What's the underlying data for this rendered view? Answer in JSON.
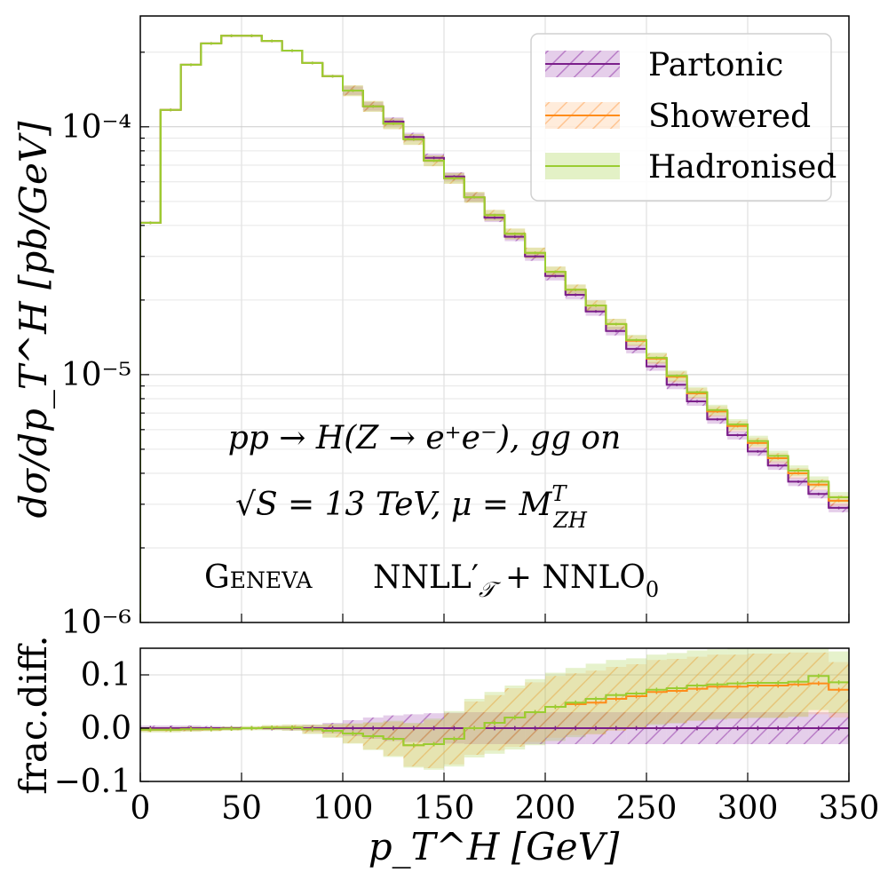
{
  "chart_data": {
    "type": "histogram-step",
    "title": "",
    "bin_edges": [
      0,
      10,
      20,
      30,
      40,
      50,
      60,
      70,
      80,
      90,
      100,
      110,
      120,
      130,
      140,
      150,
      160,
      170,
      180,
      190,
      200,
      210,
      220,
      230,
      240,
      250,
      260,
      270,
      280,
      290,
      300,
      310,
      320,
      330,
      340,
      350
    ],
    "upper_panel": {
      "ylabel": "dσ/dp_T^H   [pb/GeV]",
      "yscale": "log",
      "ylim": [
        1e-06,
        0.00028
      ],
      "yticks": [
        1e-06,
        1e-05,
        0.0001
      ],
      "ytick_labels": [
        "10⁻⁶",
        "10⁻⁵",
        "10⁻⁴"
      ],
      "series": [
        {
          "name": "Partonic",
          "color": "#7b1f8a",
          "band_opacity": 0.25,
          "hatched": true,
          "values": [
            4.1e-05,
            0.000117,
            0.000178,
            0.000217,
            0.000233,
            0.000233,
            0.000222,
            0.000203,
            0.000181,
            0.00016,
            0.00014,
            0.000121,
            0.000105,
            9.1e-05,
            7.5e-05,
            6.3e-05,
            5.2e-05,
            4.3e-05,
            3.6e-05,
            3e-05,
            2.5e-05,
            2.1e-05,
            1.8e-05,
            1.5e-05,
            1.27e-05,
            1.08e-05,
            9.1e-06,
            7.8e-06,
            6.6e-06,
            5.7e-06,
            4.9e-06,
            4.3e-06,
            3.7e-06,
            3.3e-06,
            2.9e-06
          ],
          "rel_band": 0.04
        },
        {
          "name": "Showered",
          "color": "#ff8c1a",
          "band_opacity": 0.2,
          "hatched": true,
          "values": [
            4.1e-05,
            0.000117,
            0.000178,
            0.000217,
            0.000233,
            0.000233,
            0.000222,
            0.000203,
            0.000181,
            0.00016,
            0.00014,
            0.000121,
            0.000103,
            8.9e-05,
            7.3e-05,
            6.2e-05,
            5.2e-05,
            4.4e-05,
            3.7e-05,
            3.1e-05,
            2.6e-05,
            2.2e-05,
            1.9e-05,
            1.6e-05,
            1.37e-05,
            1.16e-05,
            9.8e-06,
            8.4e-06,
            7.1e-06,
            6.2e-06,
            5.3e-06,
            4.6e-06,
            4e-06,
            3.6e-06,
            3.1e-06
          ],
          "rel_band": 0.05
        },
        {
          "name": "Hadronised",
          "color": "#9acd32",
          "band_opacity": 0.25,
          "hatched": false,
          "values": [
            4.1e-05,
            0.000117,
            0.000178,
            0.000217,
            0.000233,
            0.000233,
            0.000222,
            0.000203,
            0.000181,
            0.00016,
            0.00014,
            0.000121,
            0.000103,
            8.9e-05,
            7.3e-05,
            6.2e-05,
            5.2e-05,
            4.4e-05,
            3.7e-05,
            3.1e-05,
            2.6e-05,
            2.2e-05,
            1.9e-05,
            1.6e-05,
            1.38e-05,
            1.17e-05,
            9.9e-06,
            8.5e-06,
            7.2e-06,
            6.3e-06,
            5.4e-06,
            4.7e-06,
            4.1e-06,
            3.7e-06,
            3.2e-06
          ],
          "rel_band": 0.05
        }
      ]
    },
    "lower_panel": {
      "ylabel": "frac.diff.",
      "ylim": [
        -0.1,
        0.15
      ],
      "yticks": [
        -0.1,
        0.0,
        0.1
      ],
      "ytick_labels": [
        "−0.1",
        "0.0",
        "0.1"
      ],
      "series": [
        {
          "name": "Partonic",
          "values": [
            0,
            0,
            0,
            0,
            0,
            0,
            0,
            0,
            0,
            0,
            0,
            0,
            0,
            0,
            0,
            0,
            0,
            0,
            0,
            0,
            0,
            0,
            0,
            0,
            0,
            0,
            0,
            0,
            0,
            0,
            0,
            0,
            0,
            0,
            0
          ],
          "band_half": [
            0.005,
            0.005,
            0.005,
            0.004,
            0.003,
            0.002,
            0.003,
            0.004,
            0.006,
            0.01,
            0.015,
            0.02,
            0.024,
            0.026,
            0.028,
            0.029,
            0.03,
            0.03,
            0.03,
            0.03,
            0.03,
            0.03,
            0.03,
            0.03,
            0.03,
            0.03,
            0.03,
            0.03,
            0.03,
            0.03,
            0.03,
            0.03,
            0.03,
            0.03,
            0.03
          ]
        },
        {
          "name": "Showered",
          "values": [
            -0.003,
            -0.003,
            -0.002,
            -0.002,
            -0.001,
            0.0,
            0.001,
            0.001,
            -0.002,
            -0.005,
            -0.01,
            -0.015,
            -0.02,
            -0.032,
            -0.03,
            -0.02,
            0.0,
            0.01,
            0.02,
            0.03,
            0.04,
            0.045,
            0.048,
            0.055,
            0.06,
            0.068,
            0.07,
            0.074,
            0.078,
            0.078,
            0.08,
            0.08,
            0.082,
            0.084,
            0.072
          ],
          "band_half": [
            0.004,
            0.004,
            0.004,
            0.003,
            0.003,
            0.003,
            0.004,
            0.005,
            0.008,
            0.012,
            0.018,
            0.025,
            0.032,
            0.04,
            0.045,
            0.048,
            0.05,
            0.052,
            0.055,
            0.056,
            0.058,
            0.058,
            0.06,
            0.06,
            0.06,
            0.06,
            0.06,
            0.06,
            0.06,
            0.06,
            0.06,
            0.06,
            0.06,
            0.058,
            0.052
          ]
        },
        {
          "name": "Hadronised",
          "values": [
            -0.003,
            -0.003,
            -0.002,
            -0.002,
            -0.001,
            0.0,
            0.001,
            0.001,
            -0.002,
            -0.005,
            -0.01,
            -0.015,
            -0.02,
            -0.032,
            -0.03,
            -0.02,
            0.0,
            0.01,
            0.02,
            0.03,
            0.04,
            0.048,
            0.055,
            0.062,
            0.065,
            0.072,
            0.075,
            0.08,
            0.082,
            0.084,
            0.085,
            0.085,
            0.087,
            0.098,
            0.086
          ],
          "band_half": [
            0.005,
            0.005,
            0.005,
            0.004,
            0.004,
            0.004,
            0.005,
            0.006,
            0.009,
            0.013,
            0.019,
            0.026,
            0.034,
            0.042,
            0.048,
            0.052,
            0.055,
            0.058,
            0.06,
            0.062,
            0.064,
            0.065,
            0.066,
            0.066,
            0.066,
            0.066,
            0.066,
            0.066,
            0.066,
            0.066,
            0.066,
            0.066,
            0.066,
            0.064,
            0.058
          ]
        }
      ]
    },
    "xaxis": {
      "label": "p_T^H   [GeV]",
      "xlim": [
        0,
        350
      ],
      "xticks": [
        0,
        50,
        100,
        150,
        200,
        250,
        300,
        350
      ],
      "xtick_labels": [
        "0",
        "50",
        "100",
        "150",
        "200",
        "250",
        "300",
        "350"
      ]
    },
    "legend": {
      "placement": "top-right",
      "entries": [
        "Partonic",
        "Showered",
        "Hadronised"
      ]
    },
    "annotations": {
      "process": "pp → H(Z → e⁺e⁻),  gg on",
      "energy": "√S = 13 TeV,  μ = M",
      "energy_sup": "T",
      "energy_sub": "ZH",
      "generator": "Geneva",
      "accuracy": "NNLL′",
      "accuracy_sub": "𝒯",
      "accuracy_tail": " + NNLO",
      "accuracy_tail_sub": "0"
    },
    "grid": true
  }
}
